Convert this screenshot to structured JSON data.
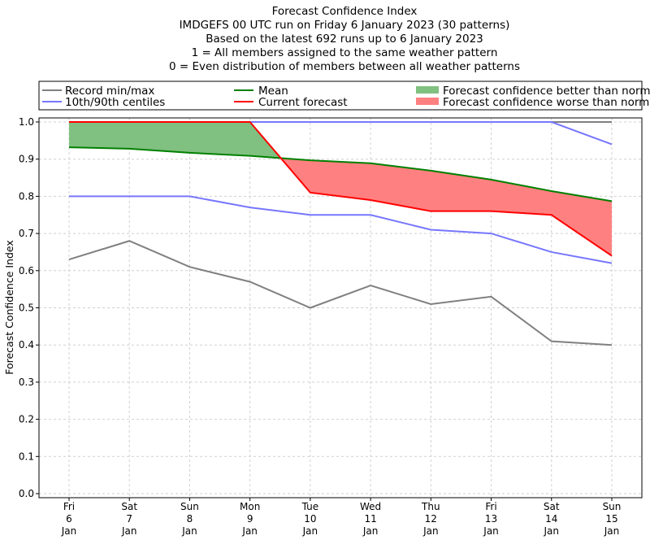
{
  "chart_data": {
    "type": "line",
    "title_lines": [
      "Forecast Confidence Index",
      "IMDGEFS 00 UTC run on Friday 6 January 2023 (30 patterns)",
      "Based on the latest 692 runs up to 6 January 2023",
      "1 = All members assigned to the same weather pattern",
      "0 = Even distribution of members between all weather patterns"
    ],
    "ylabel": "Forecast Confidence Index",
    "ylim": [
      0,
      1.0
    ],
    "yticks": [
      "0.0",
      "0.1",
      "0.2",
      "0.3",
      "0.4",
      "0.5",
      "0.6",
      "0.7",
      "0.8",
      "0.9",
      "1.0"
    ],
    "categories": [
      [
        "Fri",
        "6",
        "Jan"
      ],
      [
        "Sat",
        "7",
        "Jan"
      ],
      [
        "Sun",
        "8",
        "Jan"
      ],
      [
        "Mon",
        "9",
        "Jan"
      ],
      [
        "Tue",
        "10",
        "Jan"
      ],
      [
        "Wed",
        "11",
        "Jan"
      ],
      [
        "Thu",
        "12",
        "Jan"
      ],
      [
        "Fri",
        "13",
        "Jan"
      ],
      [
        "Sat",
        "14",
        "Jan"
      ],
      [
        "Sun",
        "15",
        "Jan"
      ]
    ],
    "grid": true,
    "legend_placement": "top, above plot",
    "legend": {
      "record": "Record min/max",
      "centiles": "10th/90th centiles",
      "mean": "Mean",
      "current": "Current forecast",
      "better": "Forecast confidence better than normal",
      "worse": "Forecast confidence worse than normal"
    },
    "series": {
      "record_max": [
        1.0,
        1.0,
        1.0,
        1.0,
        1.0,
        1.0,
        1.0,
        1.0,
        1.0,
        1.0
      ],
      "record_min": [
        0.63,
        0.68,
        0.61,
        0.57,
        0.5,
        0.56,
        0.51,
        0.53,
        0.41,
        0.4
      ],
      "p90": [
        1.0,
        1.0,
        1.0,
        1.0,
        1.0,
        1.0,
        1.0,
        1.0,
        1.0,
        0.94
      ],
      "p10": [
        0.8,
        0.8,
        0.8,
        0.77,
        0.75,
        0.75,
        0.71,
        0.7,
        0.65,
        0.62
      ],
      "mean": [
        0.932,
        0.928,
        0.917,
        0.909,
        0.897,
        0.889,
        0.869,
        0.845,
        0.814,
        0.787
      ],
      "current": [
        1.0,
        1.0,
        1.0,
        1.0,
        0.81,
        0.79,
        0.76,
        0.76,
        0.75,
        0.64
      ]
    },
    "colors": {
      "record": "#808080",
      "centiles": "#7777ff",
      "mean": "#008000",
      "current": "#ff0000",
      "better": "#80c080",
      "worse": "#ff8080"
    }
  }
}
